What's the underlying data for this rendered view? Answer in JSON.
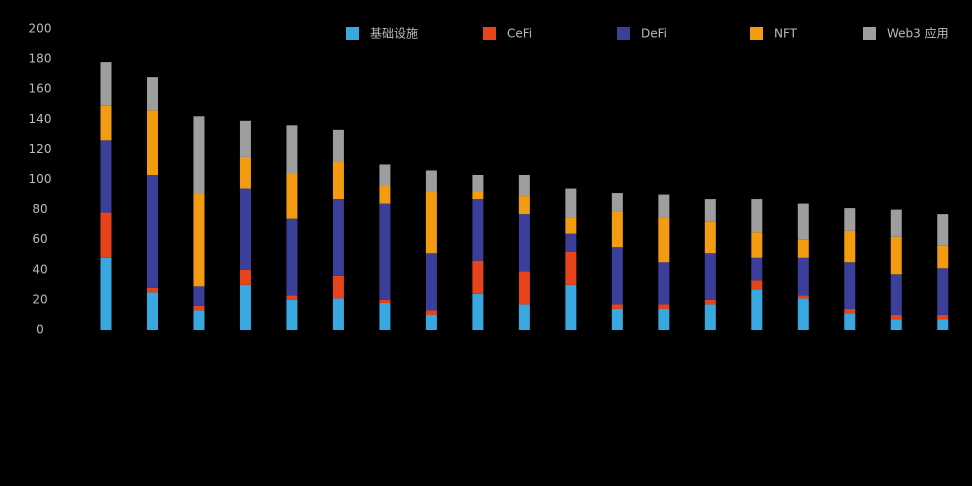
{
  "chart_data": {
    "type": "stacked_bar",
    "categories": [
      null,
      null,
      null,
      null,
      null,
      null,
      null,
      null,
      null,
      null,
      null,
      null,
      null,
      null,
      null,
      null,
      null,
      null,
      null
    ],
    "series": [
      {
        "name": "基础设施",
        "color": "#3aa8e0",
        "values": [
          48,
          25,
          13,
          30,
          20,
          21,
          18,
          10,
          24,
          17,
          30,
          14,
          14,
          17,
          27,
          21,
          11,
          7,
          7
        ]
      },
      {
        "name": "CeFi",
        "color": "#e8441c",
        "values": [
          30,
          3,
          3,
          10,
          3,
          15,
          2,
          3,
          22,
          22,
          22,
          3,
          3,
          3,
          6,
          2,
          3,
          3,
          3
        ]
      },
      {
        "name": "DeFi",
        "color": "#3b3f9a",
        "values": [
          48,
          75,
          13,
          54,
          51,
          51,
          64,
          38,
          41,
          38,
          12,
          38,
          28,
          31,
          15,
          25,
          31,
          27,
          31
        ]
      },
      {
        "name": "NFT",
        "color": "#f39c12",
        "values": [
          23,
          43,
          62,
          21,
          30,
          25,
          12,
          41,
          5,
          12,
          11,
          24,
          30,
          21,
          17,
          12,
          21,
          25,
          15
        ]
      },
      {
        "name": "Web3 应用",
        "color": "#9e9e9e",
        "values": [
          29,
          22,
          51,
          24,
          32,
          21,
          14,
          14,
          11,
          14,
          19,
          12,
          15,
          15,
          22,
          24,
          15,
          18,
          21
        ]
      }
    ],
    "ylim": [
      0,
      200
    ],
    "yticks": [
      0,
      20,
      40,
      60,
      80,
      100,
      120,
      140,
      160,
      180,
      200
    ],
    "legend": "top",
    "grid": false
  }
}
